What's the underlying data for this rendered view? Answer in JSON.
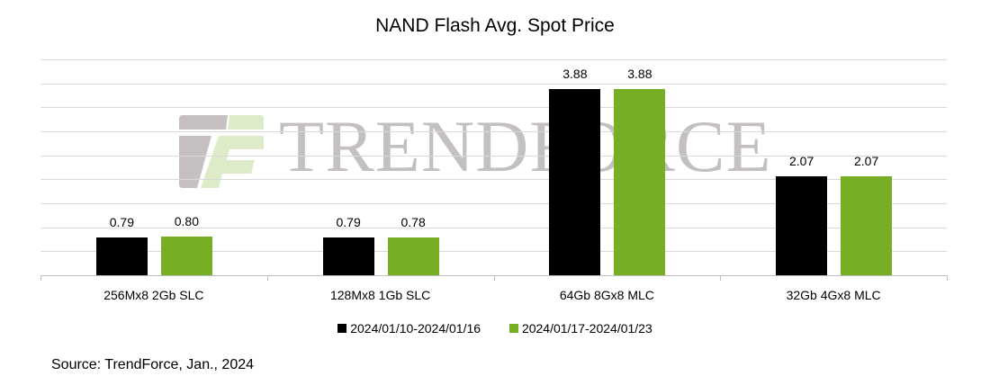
{
  "chart_data": {
    "type": "bar",
    "title": "NAND Flash Avg. Spot Price",
    "xlabel": "",
    "ylabel": "",
    "ylim": [
      0,
      4.5
    ],
    "grid": true,
    "gridline_step": 0.5,
    "y_axis_labels_visible": false,
    "legend_position": "bottom",
    "categories": [
      "256Mx8 2Gb SLC",
      "128Mx8 1Gb SLC",
      "64Gb 8Gx8 MLC",
      "32Gb 4Gx8 MLC"
    ],
    "series": [
      {
        "name": "2024/01/10-2024/01/16",
        "color": "#000000",
        "values": [
          0.79,
          0.79,
          3.88,
          2.07
        ]
      },
      {
        "name": "2024/01/17-2024/01/23",
        "color": "#76AE24",
        "values": [
          0.8,
          0.78,
          3.88,
          2.07
        ]
      }
    ],
    "data_labels": [
      [
        "0.79",
        "0.79",
        "3.88",
        "2.07"
      ],
      [
        "0.80",
        "0.78",
        "3.88",
        "2.07"
      ]
    ],
    "source": "Source: TrendForce, Jan., 2024",
    "watermark": "TrendForce"
  },
  "colors": {
    "series1": "#000000",
    "series2": "#76AE24",
    "grid": "#d9d9d9"
  }
}
